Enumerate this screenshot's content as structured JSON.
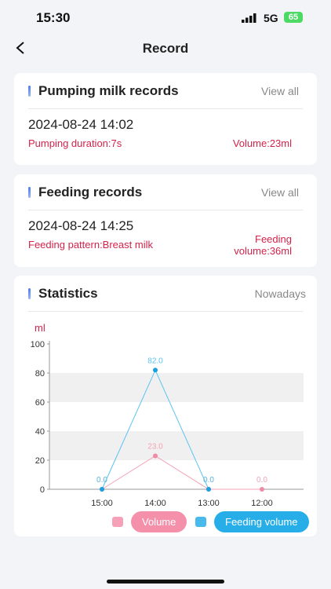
{
  "status_bar": {
    "time": "15:30",
    "network": "5G",
    "battery": "65"
  },
  "header": {
    "title": "Record"
  },
  "pumping_card": {
    "title": "Pumping milk records",
    "link": "View all",
    "date": "2024-08-24 14:02",
    "duration": "Pumping duration:7s",
    "volume": "Volume:23ml"
  },
  "feeding_card": {
    "title": "Feeding records",
    "link": "View all",
    "date": "2024-08-24 14:25",
    "pattern": "Feeding pattern:Breast milk",
    "volume": "Feeding volume:36ml"
  },
  "statistics_card": {
    "title": "Statistics",
    "link": "Nowadays"
  },
  "chart_data": {
    "type": "line",
    "y_label": "ml",
    "categories": [
      "15:00",
      "14:00",
      "13:00",
      "12:00"
    ],
    "series": [
      {
        "name": "Volume",
        "color": "#f4a3b7",
        "values": [
          0,
          23,
          0,
          0
        ],
        "value_labels": [
          "0.0",
          "23.0",
          "0.0",
          "0.0"
        ]
      },
      {
        "name": "Feeding volume",
        "color": "#5cc3ee",
        "values": [
          0,
          82,
          0,
          null
        ],
        "value_labels": [
          "0.0",
          "82.0",
          "0.0",
          null
        ]
      }
    ],
    "ylim": [
      0,
      100
    ],
    "yticks": [
      0,
      20,
      40,
      60,
      80,
      100
    ],
    "grid": true
  }
}
